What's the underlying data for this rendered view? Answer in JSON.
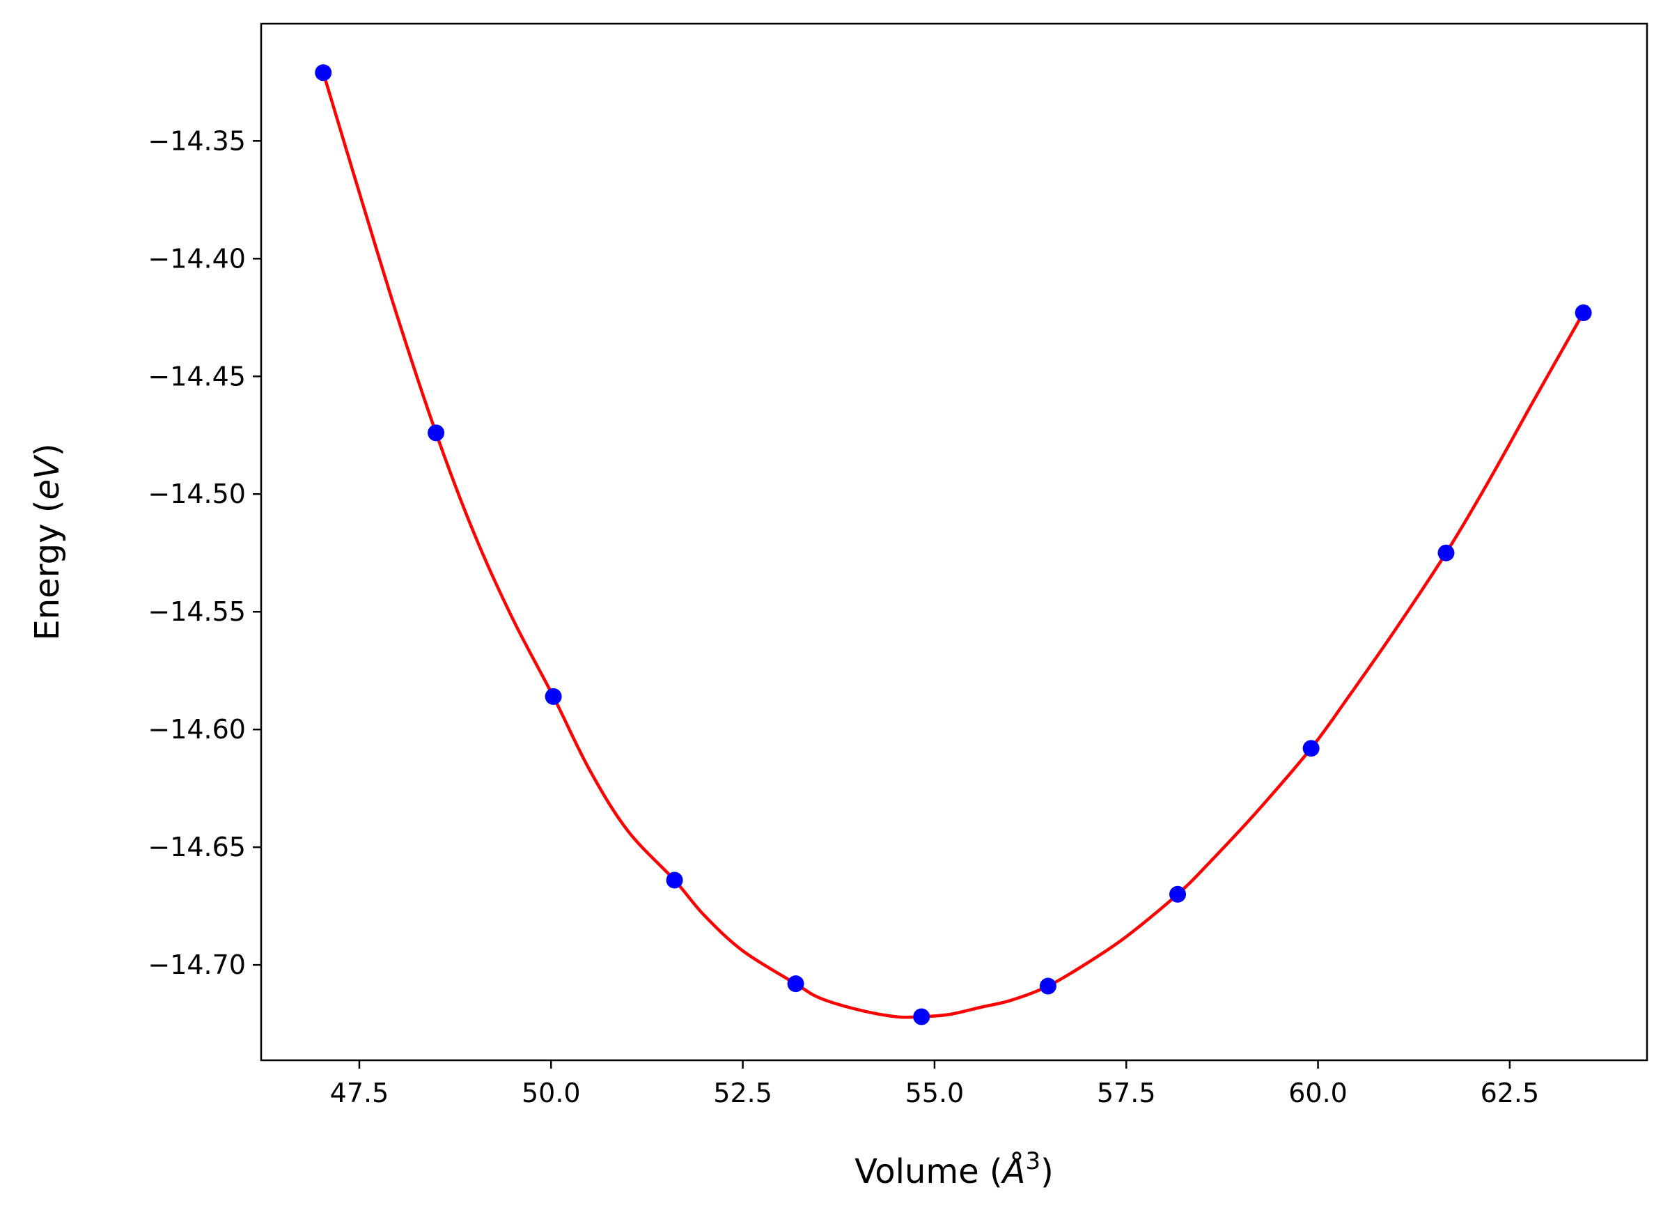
{
  "chart_data": {
    "type": "scatter",
    "title": "",
    "xlabel": "Volume ($\\AA^3$)",
    "xlabel_display": {
      "prefix": "Volume (",
      "symbol": "Å",
      "superscript": "3",
      "suffix": ")"
    },
    "ylabel": "Energy ($eV$)",
    "ylabel_display": {
      "prefix": "Energy (",
      "unit": "eV",
      "suffix": ")"
    },
    "xlim": [
      46.22,
      64.29
    ],
    "ylim": [
      -14.7405,
      -14.3002
    ],
    "x_ticks": [
      47.5,
      50.0,
      52.5,
      55.0,
      57.5,
      60.0,
      62.5
    ],
    "x_tick_labels": [
      "47.5",
      "50.0",
      "52.5",
      "55.0",
      "57.5",
      "60.0",
      "62.5"
    ],
    "y_ticks": [
      -14.35,
      -14.4,
      -14.45,
      -14.5,
      -14.55,
      -14.6,
      -14.65,
      -14.7
    ],
    "y_tick_labels": [
      "−14.35",
      "−14.40",
      "−14.45",
      "−14.50",
      "−14.55",
      "−14.60",
      "−14.65",
      "−14.70"
    ],
    "grid": false,
    "series": [
      {
        "kind": "points",
        "color": "#0000ff",
        "x": [
          47.03,
          48.5,
          50.03,
          51.61,
          53.19,
          54.83,
          56.48,
          58.17,
          59.91,
          61.67,
          63.46
        ],
        "y": [
          -14.321,
          -14.474,
          -14.586,
          -14.664,
          -14.708,
          -14.722,
          -14.709,
          -14.67,
          -14.608,
          -14.525,
          -14.423
        ]
      },
      {
        "kind": "fit-curve",
        "color": "#ff0000",
        "x": [
          47.03,
          47.5,
          48.0,
          48.5,
          49.0,
          49.5,
          50.03,
          50.5,
          51.0,
          51.61,
          52.0,
          52.5,
          53.19,
          53.5,
          54.0,
          54.5,
          54.83,
          55.2,
          55.6,
          56.0,
          56.48,
          57.0,
          57.5,
          58.17,
          58.6,
          59.2,
          59.91,
          60.4,
          61.0,
          61.67,
          62.2,
          62.8,
          63.46
        ],
        "y": [
          -14.321,
          -14.372,
          -14.425,
          -14.474,
          -14.517,
          -14.553,
          -14.586,
          -14.617,
          -14.643,
          -14.664,
          -14.679,
          -14.694,
          -14.708,
          -14.714,
          -14.719,
          -14.722,
          -14.722,
          -14.721,
          -14.718,
          -14.715,
          -14.709,
          -14.699,
          -14.688,
          -14.67,
          -14.656,
          -14.635,
          -14.608,
          -14.586,
          -14.558,
          -14.525,
          -14.496,
          -14.461,
          -14.423
        ]
      }
    ]
  }
}
